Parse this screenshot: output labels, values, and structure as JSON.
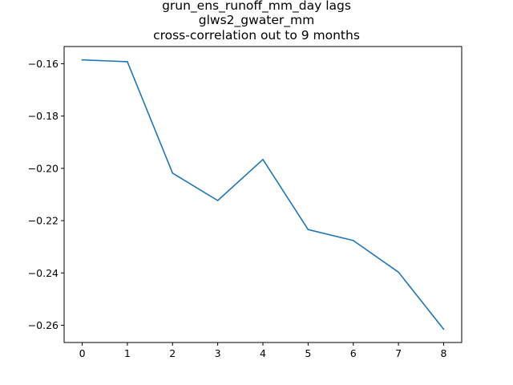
{
  "chart_data": {
    "type": "line",
    "title_lines": [
      "grun_ens_runoff_mm_day lags",
      "glws2_gwater_mm",
      "cross-correlation out to 9 months"
    ],
    "xlabel": "",
    "ylabel": "",
    "x": [
      0,
      1,
      2,
      3,
      4,
      5,
      6,
      7,
      8
    ],
    "series": [
      {
        "values": [
          -0.1585,
          -0.1592,
          -0.2018,
          -0.2123,
          -0.1966,
          -0.2234,
          -0.2276,
          -0.2397,
          -0.2615
        ],
        "color": "#1f77b4"
      }
    ],
    "xlim": [
      -0.4,
      8.4
    ],
    "ylim": [
      -0.2666,
      -0.1534
    ],
    "xticks": [
      "0",
      "1",
      "2",
      "3",
      "4",
      "5",
      "6",
      "7",
      "8"
    ],
    "yticks": [
      "−0.16",
      "−0.18",
      "−0.20",
      "−0.22",
      "−0.24",
      "−0.26"
    ],
    "ytick_values": [
      -0.16,
      -0.18,
      -0.2,
      -0.22,
      -0.24,
      -0.26
    ],
    "grid": false,
    "legend": "none"
  }
}
